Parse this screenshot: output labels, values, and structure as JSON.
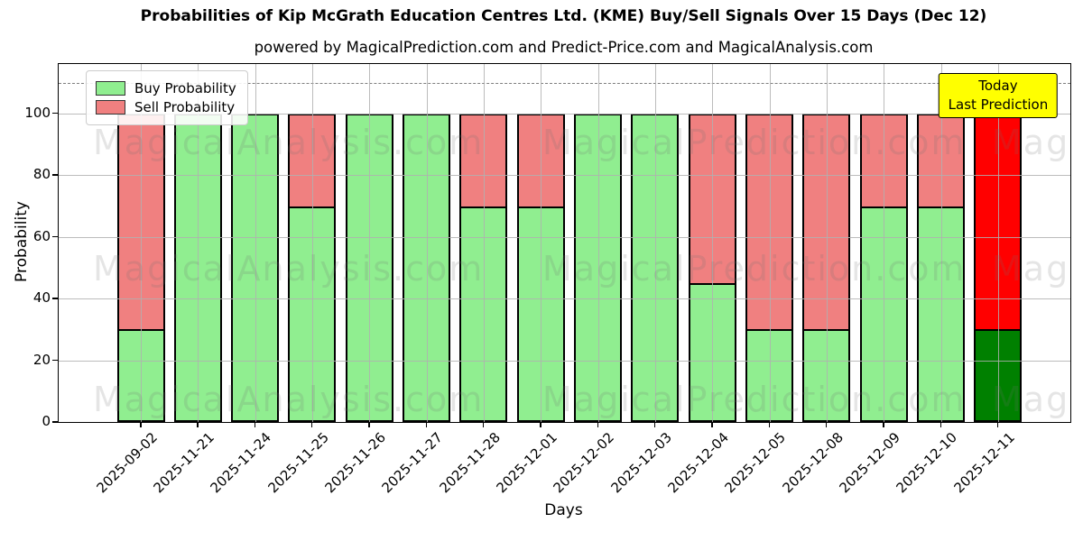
{
  "title": "Probabilities of Kip McGrath Education Centres Ltd. (KME) Buy/Sell Signals Over 15 Days (Dec 12)",
  "subtitle": "powered by MagicalPrediction.com and Predict-Price.com and MagicalAnalysis.com",
  "annotation": {
    "line1": "Today",
    "line2": "Last Prediction",
    "bg_color": "#FFFF00"
  },
  "watermarks": [
    "MagicalAnalysis.com",
    "MagicalPrediction.com"
  ],
  "colors": {
    "buy": "#90EE90",
    "sell": "#F08080",
    "today_buy": "#008000",
    "today_sell": "#FF0000",
    "today_edge": "#FFA500",
    "grid": "#b0b0b0",
    "dashed_line": "#7f7f7f"
  },
  "chart_data": {
    "type": "bar",
    "stacked": true,
    "title": "Probabilities of Kip McGrath Education Centres Ltd. (KME) Buy/Sell Signals Over 15 Days (Dec 12)",
    "xlabel": "Days",
    "ylabel": "Probability",
    "categories": [
      "2025-09-02",
      "2025-11-21",
      "2025-11-24",
      "2025-11-25",
      "2025-11-26",
      "2025-11-27",
      "2025-11-28",
      "2025-12-01",
      "2025-12-02",
      "2025-12-03",
      "2025-12-04",
      "2025-12-05",
      "2025-12-08",
      "2025-12-09",
      "2025-12-10",
      "2025-12-11"
    ],
    "series": [
      {
        "name": "Buy Probability",
        "color": "#90EE90",
        "values": [
          30,
          100,
          100,
          70,
          100,
          100,
          70,
          70,
          100,
          100,
          45,
          30,
          30,
          70,
          70,
          30
        ]
      },
      {
        "name": "Sell Probability",
        "color": "#F08080",
        "values": [
          70,
          0,
          0,
          30,
          0,
          0,
          30,
          30,
          0,
          0,
          55,
          70,
          70,
          30,
          30,
          70
        ]
      }
    ],
    "today_bar": {
      "index": 15,
      "buy_color": "#008000",
      "sell_color": "#FF0000",
      "edge_color": "#FFA500",
      "label": "Today\nLast Prediction"
    },
    "yticks": [
      0,
      20,
      40,
      60,
      80,
      100
    ],
    "ylim": [
      0,
      116
    ],
    "dashed_line_y": 110,
    "grid": true,
    "legend_position": "upper left"
  }
}
